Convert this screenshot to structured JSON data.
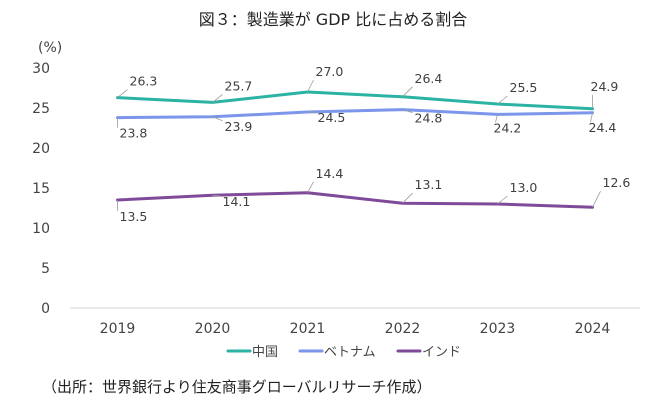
{
  "title": "図３：製造業が GDP 比に占める割合",
  "source": "（出所：世界銀行より住友商事グローバルリサーチ作成）",
  "chart_data": {
    "type": "line",
    "unit_label": "(%)",
    "categories": [
      "2019",
      "2020",
      "2021",
      "2022",
      "2023",
      "2024"
    ],
    "ylim": [
      0,
      30
    ],
    "yticks": [
      0,
      5,
      10,
      15,
      20,
      25,
      30
    ],
    "grid": false,
    "legend_position": "bottom",
    "series": [
      {
        "name": "中国",
        "color": "#2bb3a3",
        "values": [
          26.3,
          25.7,
          27.0,
          26.4,
          25.5,
          24.9
        ],
        "labels": [
          "26.3",
          "25.7",
          "27.0",
          "26.4",
          "25.5",
          "24.9"
        ]
      },
      {
        "name": "ベトナム",
        "color": "#7b96ea",
        "values": [
          23.8,
          23.9,
          24.5,
          24.8,
          24.2,
          24.4
        ],
        "labels": [
          "23.8",
          "23.9",
          "24.5",
          "24.8",
          "24.2",
          "24.4"
        ]
      },
      {
        "name": "インド",
        "color": "#7e4a99",
        "values": [
          13.5,
          14.1,
          14.4,
          13.1,
          13.0,
          12.6
        ],
        "labels": [
          "13.5",
          "14.1",
          "14.4",
          "13.1",
          "13.0",
          "12.6"
        ]
      }
    ]
  }
}
